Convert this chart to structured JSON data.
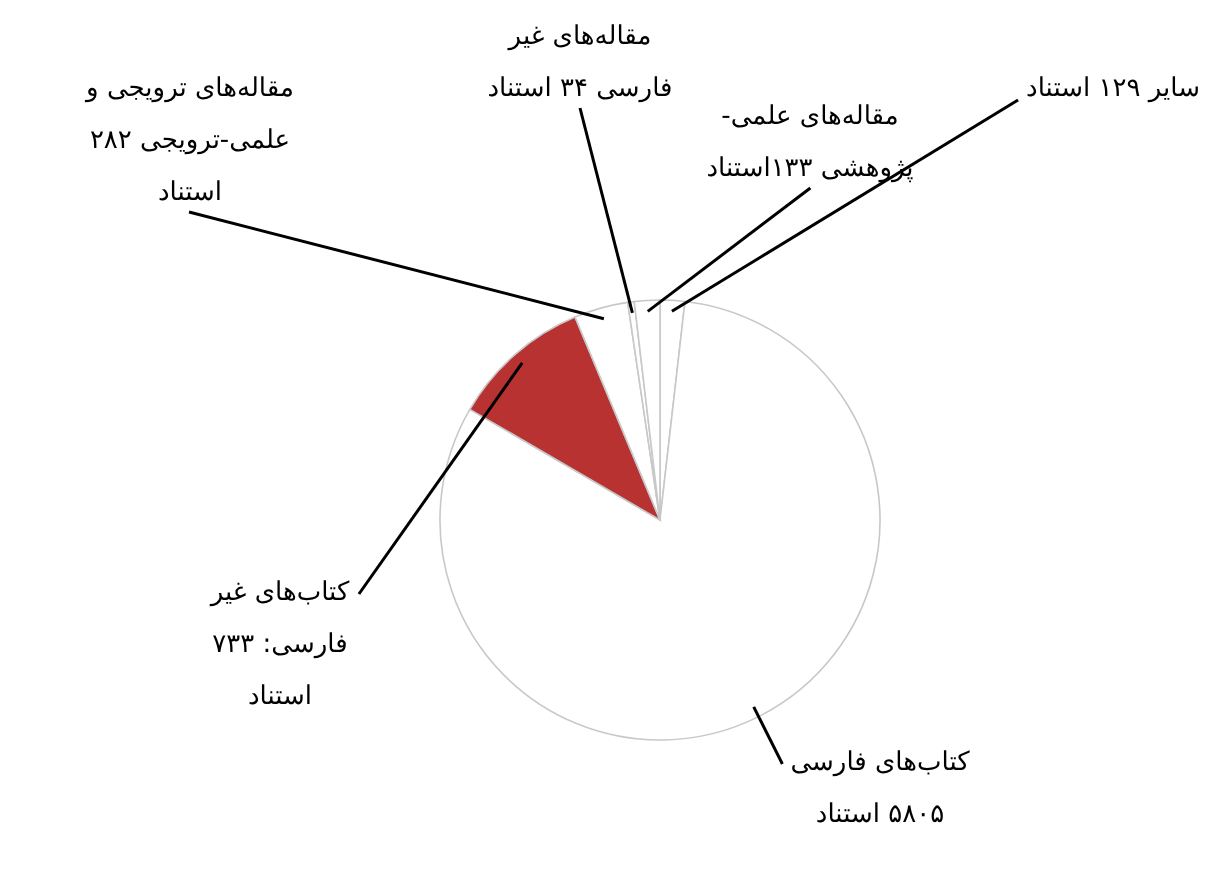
{
  "chart_data": {
    "type": "pie",
    "categories": [
      "سایر ۱۲۹ استناد",
      "کتاب‌های فارسی\n۵۸۰۵ استناد",
      "کتاب‌های غیر\nفارسی: ۷۳۳\nاستناد",
      "مقاله‌های ترویجی و\nعلمی-ترویجی ۲۸۲\nاستناد",
      "مقاله‌های غیر\nفارسی ۳۴ استناد",
      "مقاله‌های علمی-\nپژوهشی ۱۳۳استناد"
    ],
    "values": [
      129,
      5805,
      733,
      282,
      34,
      133
    ],
    "colors": [
      "#ffffff",
      "#ffffff",
      "#b83232",
      "#ffffff",
      "#ffffff",
      "#ffffff"
    ]
  }
}
